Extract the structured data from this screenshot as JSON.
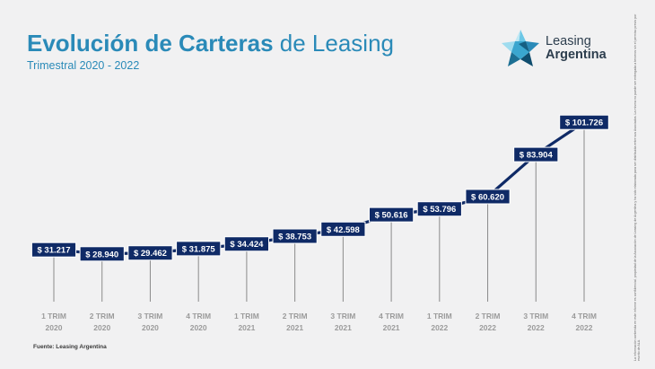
{
  "header": {
    "title_bold": "Evolución de Carteras",
    "title_light": "de Leasing",
    "subtitle": "Trimestral 2020 - 2022"
  },
  "logo": {
    "line1": "Leasing",
    "line2": "Argentina",
    "icon": "star-logo-icon"
  },
  "side_note": "La información contenida en este informe es confidencial, propiedad de la Asociación de Leasing de Argentina y ha sido elaborada para ser distribuida entre sus Asociados. La misma no puede ser entregada a terceros sin el permiso previo por escrito de ALA.",
  "source": "Fuente: Leasing Argentina",
  "colors": {
    "title": "#2a8ab8",
    "line": "#0f2a66",
    "label_bg": "#0f2a66",
    "stem": "#8a8a8a",
    "tick": "#9b9b9b"
  },
  "chart_data": {
    "type": "line",
    "title": "Evolución de Carteras de Leasing",
    "subtitle": "Trimestral 2020 - 2022",
    "categories": [
      [
        "1 TRIM",
        "2020"
      ],
      [
        "2 TRIM",
        "2020"
      ],
      [
        "3 TRIM",
        "2020"
      ],
      [
        "4 TRIM",
        "2020"
      ],
      [
        "1 TRIM",
        "2021"
      ],
      [
        "2 TRIM",
        "2021"
      ],
      [
        "3 TRIM",
        "2021"
      ],
      [
        "4 TRIM",
        "2021"
      ],
      [
        "1 TRIM",
        "2022"
      ],
      [
        "2 TRIM",
        "2022"
      ],
      [
        "3 TRIM",
        "2022"
      ],
      [
        "4 TRIM",
        "2022"
      ]
    ],
    "values": [
      31217,
      28940,
      29462,
      31875,
      34424,
      38753,
      42598,
      50616,
      53796,
      60620,
      83904,
      101726
    ],
    "data_labels": [
      "$ 31.217",
      "$ 28.940",
      "$ 29.462",
      "$ 31.875",
      "$ 34.424",
      "$ 38.753",
      "$ 42.598",
      "$ 50.616",
      "$ 53.796",
      "$ 60.620",
      "$ 83.904",
      "$ 101.726"
    ],
    "grid": false,
    "legend": "none",
    "axis_line": false
  }
}
